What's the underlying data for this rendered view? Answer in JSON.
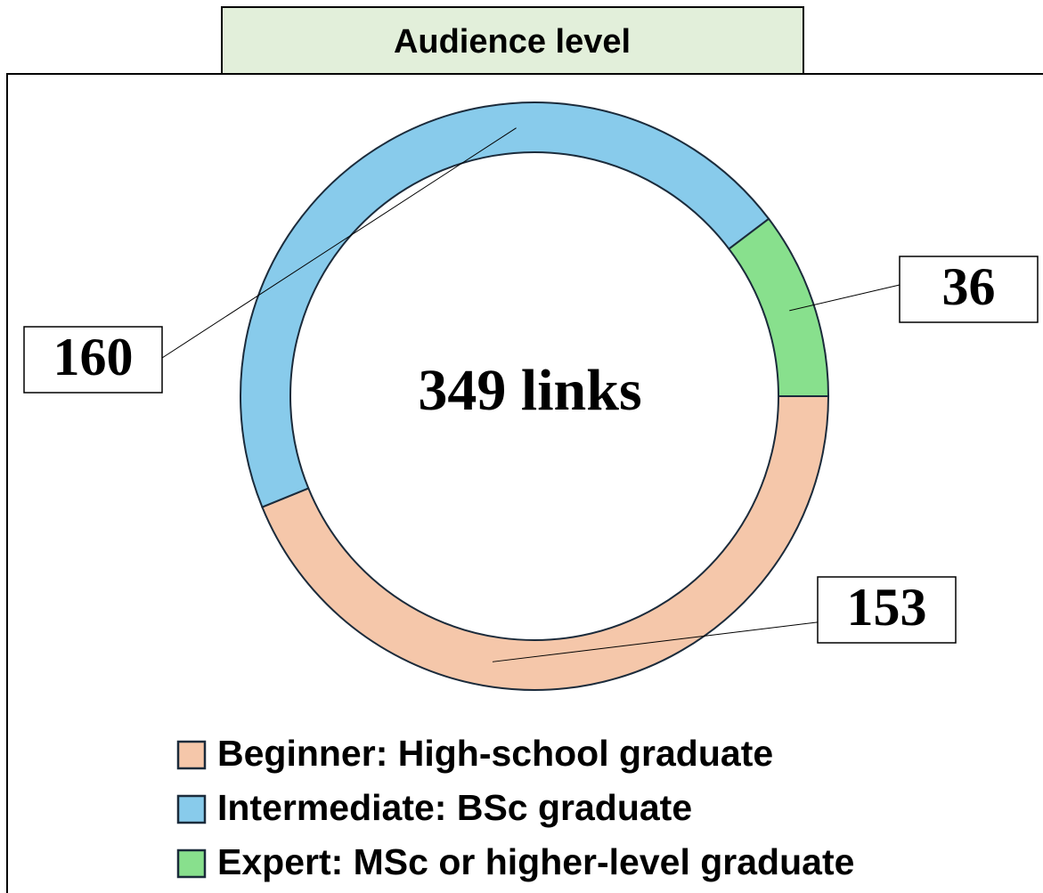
{
  "chart_data": {
    "type": "pie",
    "title": "Audience level",
    "center_label": "349 links",
    "categories": [
      "Beginner: High-school graduate",
      "Intermediate: BSc graduate",
      "Expert: MSc or higher-level graduate"
    ],
    "values": [
      153,
      160,
      36
    ],
    "colors": [
      "#f5c7aa",
      "#88cbeb",
      "#88e08d"
    ],
    "legend": "bottom"
  }
}
